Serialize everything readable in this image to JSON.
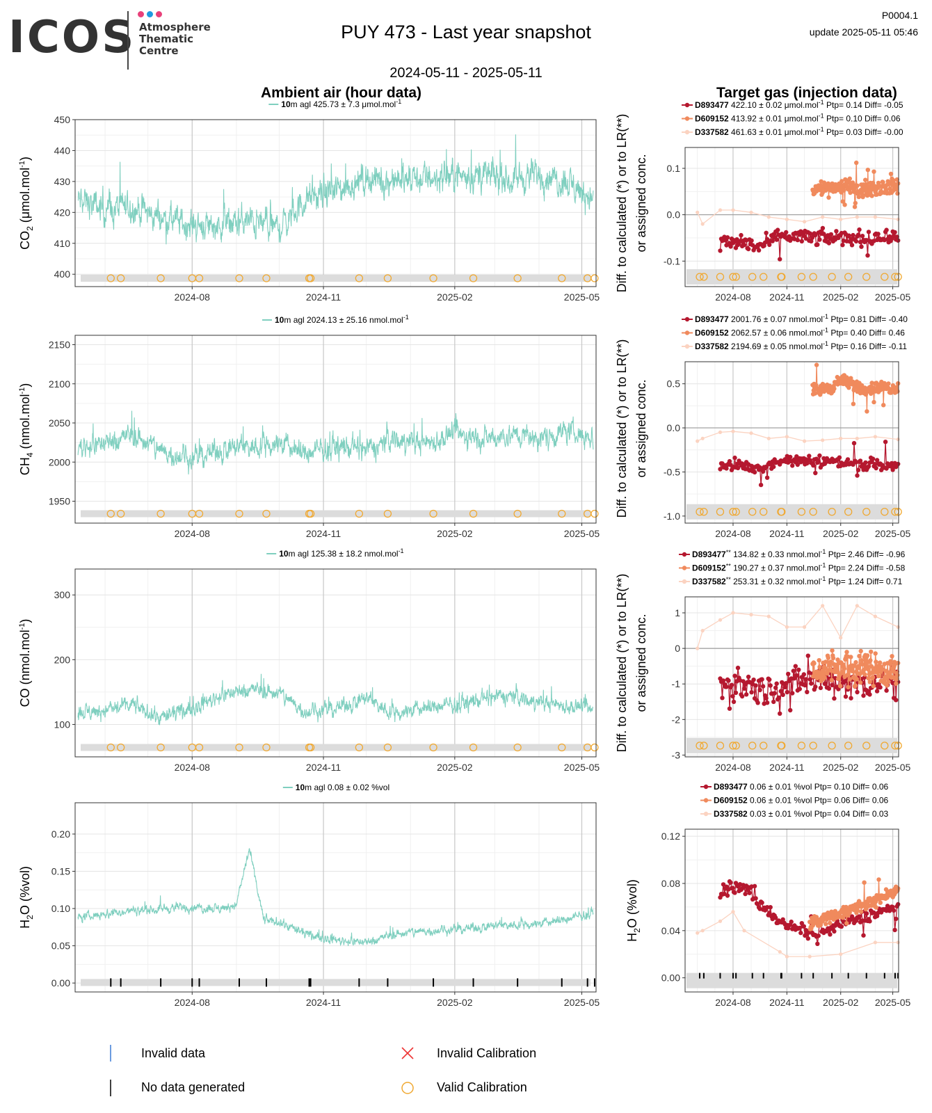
{
  "header": {
    "logo_text": "ICOS",
    "logo_subtitle": [
      "Atmosphere",
      "Thematic",
      "Centre"
    ],
    "logo_dot_colors": [
      "#e8417a",
      "#1e9be0",
      "#e8417a"
    ],
    "title": "PUY 473 - Last year snapshot",
    "date_range": "2024-05-11 - 2025-05-11",
    "page_code": "P0004.1",
    "update": "update  2025-05-11 05:46"
  },
  "section_titles": {
    "ambient": "Ambient air (hour data)",
    "target": "Target gas (injection data)"
  },
  "colors": {
    "ambient": "#7fcfbf",
    "D893477": "#b5182f",
    "D609152": "#f08a5d",
    "D337582": "#fbd3c1",
    "calibration": "#f0a830",
    "band": "#dcdcdc"
  },
  "x_ticks": [
    "2024-08",
    "2024-11",
    "2025-02",
    "2025-05"
  ],
  "panels": [
    {
      "id": "co2",
      "ylabel_main": "CO",
      "ylabel_sub": "2",
      "ylabel_rest": " (μmol.mol",
      "ylabel_sup": "-1",
      "ylabel_end": ")",
      "legend_prefix": "10",
      "legend_text": "m agl 425.73 ± 7.3 μmol.mol",
      "legend_sup": "-1",
      "ylim": [
        396,
        450
      ],
      "yticks": [
        "400",
        "410",
        "420",
        "430",
        "440",
        "450"
      ],
      "ytick_values": [
        400,
        410,
        420,
        430,
        440,
        450
      ],
      "target": {
        "ylim": [
          -0.155,
          0.145
        ],
        "yticks": [
          "-0.1",
          "0.0",
          "0.1"
        ],
        "ytick_values": [
          -0.1,
          0.0,
          0.1
        ],
        "ylabel_1": "Diff. to calculated (*) or to LR(**)",
        "ylabel_2": "or assigned conc.",
        "legend": [
          {
            "id": "D893477",
            "suffix": "",
            "text": "422.10 ± 0.02 μmol.mol",
            "sup": "-1",
            "stats": "Ptp= 0.14 Diff= -0.05"
          },
          {
            "id": "D609152",
            "suffix": "",
            "text": "413.92 ± 0.01 μmol.mol",
            "sup": "-1",
            "stats": "Ptp= 0.10 Diff= 0.06"
          },
          {
            "id": "D337582",
            "suffix": "",
            "text": "461.63 ± 0.01 μmol.mol",
            "sup": "-1",
            "stats": "Ptp= 0.03 Diff= -0.00"
          }
        ]
      }
    },
    {
      "id": "ch4",
      "ylabel_main": "CH",
      "ylabel_sub": "4",
      "ylabel_rest": " (nmol.mol",
      "ylabel_sup": "-1",
      "ylabel_end": ")",
      "legend_prefix": "10",
      "legend_text": "m agl 2024.13 ± 25.16 nmol.mol",
      "legend_sup": "-1",
      "ylim": [
        1922,
        2162
      ],
      "yticks": [
        "1950",
        "2000",
        "2050",
        "2100",
        "2150"
      ],
      "ytick_values": [
        1950,
        2000,
        2050,
        2100,
        2150
      ],
      "target": {
        "ylim": [
          -1.08,
          0.75
        ],
        "yticks": [
          "-1.0",
          "-0.5",
          "0.0",
          "0.5"
        ],
        "ytick_values": [
          -1.0,
          -0.5,
          0.0,
          0.5
        ],
        "ylabel_1": "Diff. to calculated (*) or to LR(**)",
        "ylabel_2": "or assigned conc.",
        "legend": [
          {
            "id": "D893477",
            "suffix": "",
            "text": "2001.76 ± 0.07 nmol.mol",
            "sup": "-1",
            "stats": "Ptp= 0.81 Diff= -0.40"
          },
          {
            "id": "D609152",
            "suffix": "",
            "text": "2062.57 ± 0.06 nmol.mol",
            "sup": "-1",
            "stats": "Ptp= 0.40 Diff= 0.46"
          },
          {
            "id": "D337582",
            "suffix": "",
            "text": "2194.69 ± 0.05 nmol.mol",
            "sup": "-1",
            "stats": "Ptp= 0.16 Diff= -0.11"
          }
        ]
      }
    },
    {
      "id": "co",
      "ylabel_main": "CO",
      "ylabel_sub": "",
      "ylabel_rest": " (nmol.mol",
      "ylabel_sup": "-1",
      "ylabel_end": ")",
      "legend_prefix": "10",
      "legend_text": "m agl 125.38 ± 18.2 nmol.mol",
      "legend_sup": "-1",
      "ylim": [
        50,
        340
      ],
      "yticks": [
        "100",
        "200",
        "300"
      ],
      "ytick_values": [
        100,
        200,
        300
      ],
      "target": {
        "ylim": [
          -3.05,
          1.45
        ],
        "yticks": [
          "-3",
          "-2",
          "-1",
          "0",
          "1"
        ],
        "ytick_values": [
          -3,
          -2,
          -1,
          0,
          1
        ],
        "ylabel_1": "Diff. to calculated (*) or to LR(**)",
        "ylabel_2": "or assigned conc.",
        "legend": [
          {
            "id": "D893477",
            "suffix": "**",
            "text": "134.82 ± 0.33 nmol.mol",
            "sup": "-1",
            "stats": "Ptp= 2.46 Diff= -0.96"
          },
          {
            "id": "D609152",
            "suffix": "**",
            "text": "190.27 ± 0.37 nmol.mol",
            "sup": "-1",
            "stats": "Ptp= 2.24 Diff= -0.58"
          },
          {
            "id": "D337582",
            "suffix": "**",
            "text": "253.31 ± 0.32 nmol.mol",
            "sup": "-1",
            "stats": "Ptp= 1.24 Diff= 0.71"
          }
        ]
      }
    },
    {
      "id": "h2o",
      "ylabel_main": "H",
      "ylabel_sub": "2",
      "ylabel_rest": "O (%vol)",
      "ylabel_sup": "",
      "ylabel_end": "",
      "legend_prefix": "10",
      "legend_text": "m agl 0.08 ± 0.02 %vol",
      "legend_sup": "",
      "ylim": [
        -0.012,
        0.242
      ],
      "yticks": [
        "0.00",
        "0.05",
        "0.10",
        "0.15",
        "0.20"
      ],
      "ytick_values": [
        0.0,
        0.05,
        0.1,
        0.15,
        0.2
      ],
      "target": {
        "ylim": [
          -0.012,
          0.126
        ],
        "yticks": [
          "0.00",
          "0.04",
          "0.08",
          "0.12"
        ],
        "ytick_values": [
          0.0,
          0.04,
          0.08,
          0.12
        ],
        "ylabel_1": "H",
        "ylabel_2": "",
        "legend": [
          {
            "id": "D893477",
            "suffix": "",
            "text": "0.06 ± 0.01 %vol",
            "sup": "",
            "stats": "Ptp= 0.10 Diff= 0.06"
          },
          {
            "id": "D609152",
            "suffix": "",
            "text": "0.06 ± 0.01 %vol",
            "sup": "",
            "stats": "Ptp= 0.06 Diff= 0.06"
          },
          {
            "id": "D337582",
            "suffix": "",
            "text": "0.03 ± 0.01 %vol",
            "sup": "",
            "stats": "Ptp= 0.04 Diff= 0.03"
          }
        ]
      }
    }
  ],
  "bottom_legend": {
    "invalid_data": "Invalid data",
    "no_data": "No data generated",
    "invalid_calibration": "Invalid Calibration",
    "valid_calibration": "Valid Calibration"
  },
  "chart_data": [
    {
      "type": "line",
      "name": "co2-ambient",
      "ylabel": "CO2 (μmol.mol-1)",
      "x_range": [
        "2024-05-11",
        "2025-05-11"
      ],
      "x_ticks": [
        "2024-08",
        "2024-11",
        "2025-02",
        "2025-05"
      ],
      "ylim": [
        396,
        450
      ],
      "series": [
        {
          "name": "10m agl 425.73 ± 7.3 μmol.mol-1",
          "x": [
            "2024-05-11",
            "2024-06-01",
            "2024-06-20",
            "2024-07-10",
            "2024-08-01",
            "2024-08-20",
            "2024-09-10",
            "2024-10-01",
            "2024-10-20",
            "2024-11-10",
            "2024-12-01",
            "2024-12-20",
            "2025-01-10",
            "2025-02-01",
            "2025-02-20",
            "2025-03-10",
            "2025-04-01",
            "2025-04-20",
            "2025-05-11"
          ],
          "y": [
            424,
            421,
            422,
            418,
            416,
            416,
            417,
            415,
            424,
            427,
            431,
            430,
            431,
            432,
            432,
            431,
            432,
            430,
            424
          ]
        }
      ]
    },
    {
      "type": "line",
      "name": "ch4-ambient",
      "ylabel": "CH4 (nmol.mol-1)",
      "x_range": [
        "2024-05-11",
        "2025-05-11"
      ],
      "ylim": [
        1922,
        2162
      ],
      "series": [
        {
          "name": "10m agl 2024.13 ± 25.16 nmol.mol-1",
          "x": [
            "2024-05-11",
            "2024-06-01",
            "2024-06-20",
            "2024-07-10",
            "2024-08-01",
            "2024-08-20",
            "2024-09-10",
            "2024-10-01",
            "2024-10-20",
            "2024-11-10",
            "2024-12-01",
            "2024-12-20",
            "2025-01-10",
            "2025-02-01",
            "2025-02-20",
            "2025-03-10",
            "2025-04-01",
            "2025-04-20",
            "2025-05-11"
          ],
          "y": [
            2020,
            2025,
            2035,
            2015,
            2005,
            2015,
            2020,
            2025,
            2010,
            2020,
            2015,
            2030,
            2025,
            2035,
            2030,
            2035,
            2030,
            2040,
            2030
          ]
        }
      ]
    },
    {
      "type": "line",
      "name": "co-ambient",
      "ylabel": "CO (nmol.mol-1)",
      "x_range": [
        "2024-05-11",
        "2025-05-11"
      ],
      "ylim": [
        50,
        340
      ],
      "series": [
        {
          "name": "10m agl 125.38 ± 18.2 nmol.mol-1",
          "x": [
            "2024-05-11",
            "2024-06-01",
            "2024-06-20",
            "2024-07-10",
            "2024-08-01",
            "2024-08-20",
            "2024-09-10",
            "2024-10-01",
            "2024-10-20",
            "2024-11-10",
            "2024-12-01",
            "2024-12-20",
            "2025-01-10",
            "2025-02-01",
            "2025-02-20",
            "2025-03-10",
            "2025-04-01",
            "2025-04-20",
            "2025-05-11"
          ],
          "y": [
            118,
            122,
            130,
            110,
            125,
            145,
            155,
            148,
            120,
            125,
            140,
            118,
            125,
            130,
            138,
            145,
            135,
            130,
            120
          ]
        }
      ]
    },
    {
      "type": "line",
      "name": "h2o-ambient",
      "ylabel": "H2O (%vol)",
      "x_range": [
        "2024-05-11",
        "2025-05-11"
      ],
      "ylim": [
        -0.012,
        0.242
      ],
      "series": [
        {
          "name": "10m agl 0.08 ± 0.02 %vol",
          "x": [
            "2024-05-11",
            "2024-06-01",
            "2024-06-20",
            "2024-07-10",
            "2024-08-01",
            "2024-08-20",
            "2024-09-01",
            "2024-09-10",
            "2024-09-20",
            "2024-10-01",
            "2024-10-20",
            "2024-11-10",
            "2024-12-01",
            "2024-12-20",
            "2025-01-10",
            "2025-02-01",
            "2025-02-20",
            "2025-03-10",
            "2025-04-01",
            "2025-04-20",
            "2025-05-11"
          ],
          "y": [
            0.087,
            0.093,
            0.097,
            0.1,
            0.102,
            0.1,
            0.105,
            0.18,
            0.085,
            0.082,
            0.065,
            0.058,
            0.055,
            0.065,
            0.07,
            0.072,
            0.075,
            0.078,
            0.08,
            0.085,
            0.095
          ]
        }
      ]
    },
    {
      "type": "scatter",
      "name": "co2-target",
      "ylim": [
        -0.155,
        0.145
      ],
      "series": [
        {
          "name": "D893477",
          "x": [
            "2024-07-10",
            "2024-08-01",
            "2024-08-20",
            "2024-09-15",
            "2024-10-15",
            "2024-11-15",
            "2024-12-15",
            "2025-01-15",
            "2025-02-15",
            "2025-03-15",
            "2025-04-15",
            "2025-05-10"
          ],
          "y": [
            -0.06,
            -0.06,
            -0.06,
            -0.07,
            -0.05,
            -0.045,
            -0.05,
            -0.05,
            -0.05,
            -0.05,
            -0.05,
            -0.045
          ]
        },
        {
          "name": "D609152",
          "x": [
            "2024-12-15",
            "2025-01-15",
            "2025-02-15",
            "2025-03-15",
            "2025-04-15",
            "2025-05-10"
          ],
          "y": [
            0.055,
            0.06,
            0.06,
            0.055,
            0.06,
            0.06
          ]
        },
        {
          "name": "D337582",
          "x": [
            "2024-06-01",
            "2024-06-10",
            "2024-07-10",
            "2024-08-01",
            "2024-09-01",
            "2024-10-01",
            "2024-11-01",
            "2024-12-01",
            "2025-01-01",
            "2025-02-01",
            "2025-03-01",
            "2025-04-01",
            "2025-05-10"
          ],
          "y": [
            0.005,
            -0.02,
            0.01,
            0.01,
            0.005,
            -0.005,
            -0.01,
            -0.015,
            -0.005,
            -0.01,
            -0.005,
            -0.005,
            -0.01
          ]
        }
      ]
    },
    {
      "type": "scatter",
      "name": "ch4-target",
      "ylim": [
        -1.08,
        0.75
      ],
      "series": [
        {
          "name": "D893477",
          "x": [
            "2024-07-10",
            "2024-08-01",
            "2024-08-20",
            "2024-09-15",
            "2024-10-15",
            "2024-11-15",
            "2024-12-15",
            "2025-01-15",
            "2025-02-15",
            "2025-03-15",
            "2025-04-15",
            "2025-05-10"
          ],
          "y": [
            -0.43,
            -0.42,
            -0.44,
            -0.46,
            -0.38,
            -0.37,
            -0.39,
            -0.38,
            -0.4,
            -0.41,
            -0.42,
            -0.4
          ]
        },
        {
          "name": "D609152",
          "x": [
            "2024-12-15",
            "2025-01-15",
            "2025-02-01",
            "2025-02-15",
            "2025-03-15",
            "2025-04-15",
            "2025-05-10"
          ],
          "y": [
            0.43,
            0.45,
            0.55,
            0.5,
            0.44,
            0.46,
            0.45
          ]
        },
        {
          "name": "D337582",
          "x": [
            "2024-06-01",
            "2024-06-10",
            "2024-07-10",
            "2024-08-01",
            "2024-09-01",
            "2024-10-01",
            "2024-11-01",
            "2024-12-01",
            "2025-01-01",
            "2025-02-01",
            "2025-03-01",
            "2025-04-01",
            "2025-05-10"
          ],
          "y": [
            -0.15,
            -0.12,
            -0.05,
            -0.04,
            -0.06,
            -0.12,
            -0.1,
            -0.15,
            -0.14,
            -0.12,
            -0.12,
            -0.1,
            -0.13
          ]
        }
      ]
    },
    {
      "type": "scatter",
      "name": "co-target",
      "ylim": [
        -3.05,
        1.45
      ],
      "series": [
        {
          "name": "D893477",
          "x": [
            "2024-07-10",
            "2024-08-01",
            "2024-08-20",
            "2024-09-15",
            "2024-10-15",
            "2024-11-15",
            "2024-12-15",
            "2025-01-15",
            "2025-02-15",
            "2025-03-15",
            "2025-04-15",
            "2025-05-10"
          ],
          "y": [
            -0.9,
            -1.1,
            -1.0,
            -1.2,
            -1.1,
            -1.0,
            -0.9,
            -0.8,
            -1.0,
            -1.0,
            -0.9,
            -1.1
          ]
        },
        {
          "name": "D609152",
          "x": [
            "2024-12-15",
            "2025-01-15",
            "2025-02-15",
            "2025-03-15",
            "2025-04-15",
            "2025-05-10"
          ],
          "y": [
            -0.7,
            -0.5,
            -0.6,
            -0.5,
            -0.6,
            -0.7
          ]
        },
        {
          "name": "D337582",
          "x": [
            "2024-06-01",
            "2024-06-10",
            "2024-07-10",
            "2024-08-01",
            "2024-09-01",
            "2024-10-01",
            "2024-11-01",
            "2024-12-01",
            "2025-01-01",
            "2025-02-01",
            "2025-03-01",
            "2025-04-01",
            "2025-05-10"
          ],
          "y": [
            0.0,
            0.5,
            0.8,
            1.0,
            0.95,
            0.9,
            0.6,
            0.6,
            1.2,
            0.3,
            1.2,
            0.9,
            0.6
          ]
        }
      ]
    },
    {
      "type": "scatter",
      "name": "h2o-target",
      "ylim": [
        -0.012,
        0.126
      ],
      "series": [
        {
          "name": "D893477",
          "x": [
            "2024-07-10",
            "2024-08-01",
            "2024-08-20",
            "2024-09-01",
            "2024-09-15",
            "2024-10-01",
            "2024-10-20",
            "2024-11-10",
            "2024-12-01",
            "2024-12-20",
            "2025-01-10",
            "2025-02-01",
            "2025-03-01",
            "2025-04-01",
            "2025-05-10"
          ],
          "y": [
            0.072,
            0.078,
            0.075,
            0.074,
            0.06,
            0.058,
            0.046,
            0.043,
            0.04,
            0.035,
            0.04,
            0.045,
            0.05,
            0.055,
            0.06
          ]
        },
        {
          "name": "D609152",
          "x": [
            "2024-12-10",
            "2025-01-01",
            "2025-02-01",
            "2025-03-01",
            "2025-04-01",
            "2025-05-10"
          ],
          "y": [
            0.045,
            0.05,
            0.055,
            0.06,
            0.065,
            0.075
          ]
        },
        {
          "name": "D337582",
          "x": [
            "2024-06-01",
            "2024-06-10",
            "2024-07-10",
            "2024-08-01",
            "2024-08-20",
            "2024-10-20",
            "2024-11-01",
            "2024-12-10",
            "2025-02-01",
            "2025-04-01",
            "2025-05-10"
          ],
          "y": [
            0.038,
            0.04,
            0.048,
            0.056,
            0.04,
            0.022,
            0.018,
            0.018,
            0.02,
            0.03,
            0.03
          ]
        }
      ]
    }
  ]
}
